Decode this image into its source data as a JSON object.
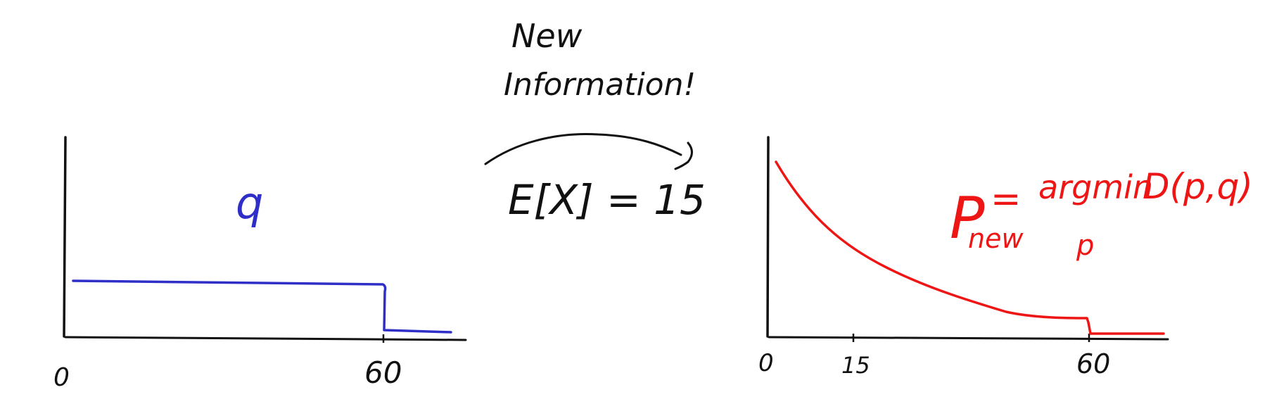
{
  "colors": {
    "ink": "#111111",
    "prior": "#2f2fc8",
    "posterior": "#ee1515"
  },
  "left_plot": {
    "curve_label": "q",
    "tick_labels": [
      "0",
      "60"
    ]
  },
  "arrow": {
    "caption_line1": "New",
    "caption_line2": "Information!",
    "constraint": "E[X] = 15"
  },
  "right_plot": {
    "tick_labels": [
      "0",
      "15",
      "60"
    ],
    "formula": {
      "lhs": "P",
      "lhs_subscript": "new",
      "equals": "=",
      "operator": "argmin",
      "operator_subscript": "p",
      "rhs": "D(p,q)"
    }
  }
}
